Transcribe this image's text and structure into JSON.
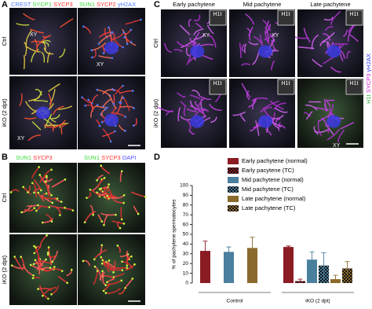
{
  "panels": {
    "A": {
      "label": "A",
      "columns": [
        [
          {
            "text": "CREST",
            "color": "#4f7bff"
          },
          {
            "text": "SYCP1",
            "color": "#39d839"
          },
          {
            "text": "SYCP3",
            "color": "#ff3030"
          }
        ],
        [
          {
            "text": "SUN1",
            "color": "#39d839"
          },
          {
            "text": "SYCP2",
            "color": "#ff3030"
          },
          {
            "text": "γH2AX",
            "color": "#4f7bff"
          }
        ]
      ],
      "rows": [
        "Ctrl",
        "iKO (2 dpt)"
      ],
      "annotations": [
        "XY",
        "XY",
        "XY"
      ]
    },
    "B": {
      "label": "B",
      "columns": [
        [
          {
            "text": "SUN1",
            "color": "#39d839"
          },
          {
            "text": "SYCP3",
            "color": "#ff3030"
          }
        ],
        [
          {
            "text": "SUN1",
            "color": "#39d839"
          },
          {
            "text": "SYCP3",
            "color": "#ff3030"
          },
          {
            "text": "DAPI",
            "color": "#4f4fff"
          }
        ]
      ],
      "rows": [
        "Ctrl",
        "iKO (2 dpt)"
      ]
    },
    "C": {
      "label": "C",
      "columns": [
        "Early pachytene",
        "Mid pachytene",
        "Late pachytene"
      ],
      "rows": [
        "Ctrl",
        "iKO (2 dpt)"
      ],
      "inset_label": "H1t",
      "side_label": [
        {
          "text": "H1t",
          "color": "#2fa82f"
        },
        {
          "text": "SYCP3",
          "color": "#d020d0"
        },
        {
          "text": "γH2AX",
          "color": "#3030ff"
        }
      ],
      "annotations": [
        "XY",
        "XY",
        "XY"
      ]
    },
    "D": {
      "label": "D"
    }
  },
  "chart_data": {
    "type": "bar",
    "ylabel": "% of pachytene spermatocytes",
    "categories": [
      "Control",
      "iKO (2 dpt)"
    ],
    "series": [
      {
        "name": "Early pachytene (normal)",
        "color": "#8b1c24",
        "pattern": "solid",
        "values": [
          33,
          37
        ],
        "errors": [
          10,
          1
        ]
      },
      {
        "name": "Early pacytene (TC)",
        "color": "#8b1c24",
        "pattern": "checker",
        "values": [
          null,
          2
        ],
        "errors": [
          null,
          2
        ]
      },
      {
        "name": "Mid pachytene (normal)",
        "color": "#4a7f9e",
        "pattern": "solid",
        "values": [
          32,
          24
        ],
        "errors": [
          5,
          8
        ]
      },
      {
        "name": "Mid pachytene (TC)",
        "color": "#4a7f9e",
        "pattern": "checker",
        "values": [
          null,
          18
        ],
        "errors": [
          null,
          13
        ]
      },
      {
        "name": "Late pachytene (normal)",
        "color": "#8b6a2e",
        "pattern": "solid",
        "values": [
          36,
          4
        ],
        "errors": [
          11,
          4
        ]
      },
      {
        "name": "Late pachytene (TC)",
        "color": "#8b6a2e",
        "pattern": "checker",
        "values": [
          null,
          15
        ],
        "errors": [
          null,
          7
        ]
      }
    ],
    "ylim": [
      0,
      100
    ],
    "yticks": [
      0,
      10,
      20,
      30,
      40,
      50,
      60,
      70,
      80,
      90,
      100
    ]
  }
}
